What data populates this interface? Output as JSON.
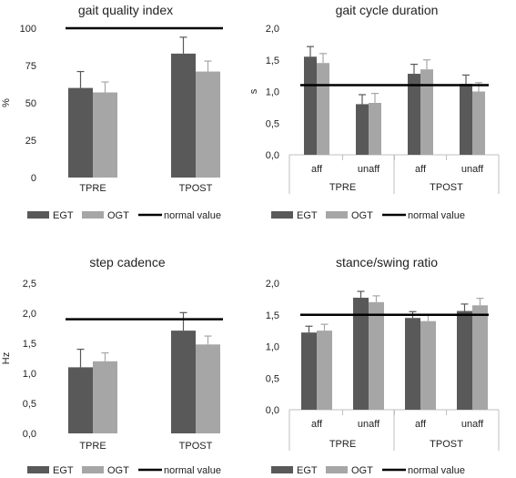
{
  "chart_data": [
    {
      "type": "bar",
      "title": "gait quality index",
      "ylabel": "%",
      "ylim": [
        0,
        100
      ],
      "yticks": [
        "0",
        "25",
        "50",
        "75",
        "100"
      ],
      "categories": [
        "TPRE",
        "TPOST"
      ],
      "groups": [],
      "series": [
        {
          "name": "EGT",
          "values": [
            60,
            83
          ],
          "errors": [
            11,
            11
          ],
          "color": "#595959"
        },
        {
          "name": "OGT",
          "values": [
            57,
            71
          ],
          "errors": [
            7,
            7
          ],
          "color": "#a6a6a6"
        }
      ],
      "normal_value": 100,
      "legend": {
        "position": "bottom",
        "labels": [
          "EGT",
          "OGT",
          "normal value"
        ]
      }
    },
    {
      "type": "bar",
      "title": "gait cycle duration",
      "ylabel": "s",
      "ylim": [
        0,
        2.0
      ],
      "yticks": [
        "0,0",
        "0,5",
        "1,0",
        "1,5",
        "2,0"
      ],
      "categories": [
        "aff",
        "unaff",
        "aff",
        "unaff"
      ],
      "groups": [
        {
          "label": "TPRE",
          "span": 2
        },
        {
          "label": "TPOST",
          "span": 2
        }
      ],
      "series": [
        {
          "name": "EGT",
          "values": [
            1.55,
            0.8,
            1.28,
            1.12
          ],
          "errors": [
            0.16,
            0.15,
            0.15,
            0.14
          ],
          "color": "#595959"
        },
        {
          "name": "OGT",
          "values": [
            1.45,
            0.82,
            1.35,
            1.0
          ],
          "errors": [
            0.15,
            0.15,
            0.15,
            0.14
          ],
          "color": "#a6a6a6"
        }
      ],
      "normal_value": 1.1,
      "legend": {
        "position": "bottom",
        "labels": [
          "EGT",
          "OGT",
          "normal value"
        ]
      }
    },
    {
      "type": "bar",
      "title": "step cadence",
      "ylabel": "Hz",
      "ylim": [
        0,
        2.5
      ],
      "yticks": [
        "0,0",
        "0,5",
        "1,0",
        "1,5",
        "2,0",
        "2,5"
      ],
      "categories": [
        "TPRE",
        "TPOST"
      ],
      "groups": [],
      "series": [
        {
          "name": "EGT",
          "values": [
            1.1,
            1.71
          ],
          "errors": [
            0.3,
            0.3
          ],
          "color": "#595959"
        },
        {
          "name": "OGT",
          "values": [
            1.2,
            1.48
          ],
          "errors": [
            0.14,
            0.14
          ],
          "color": "#a6a6a6"
        }
      ],
      "normal_value": 1.9,
      "legend": {
        "position": "bottom",
        "labels": [
          "EGT",
          "OGT",
          "normal value"
        ]
      }
    },
    {
      "type": "bar",
      "title": "stance/swing ratio",
      "ylabel": "",
      "ylim": [
        0,
        2.0
      ],
      "yticks": [
        "0,0",
        "0,5",
        "1,0",
        "1,5",
        "2,0"
      ],
      "categories": [
        "aff",
        "unaff",
        "aff",
        "unaff"
      ],
      "groups": [
        {
          "label": "TPRE",
          "span": 2
        },
        {
          "label": "TPOST",
          "span": 2
        }
      ],
      "series": [
        {
          "name": "EGT",
          "values": [
            1.22,
            1.77,
            1.45,
            1.56
          ],
          "errors": [
            0.1,
            0.1,
            0.1,
            0.11
          ],
          "color": "#595959"
        },
        {
          "name": "OGT",
          "values": [
            1.25,
            1.7,
            1.4,
            1.65
          ],
          "errors": [
            0.1,
            0.1,
            0.1,
            0.11
          ],
          "color": "#a6a6a6"
        }
      ],
      "normal_value": 1.5,
      "legend": {
        "position": "bottom",
        "labels": [
          "EGT",
          "OGT",
          "normal value"
        ]
      }
    }
  ]
}
